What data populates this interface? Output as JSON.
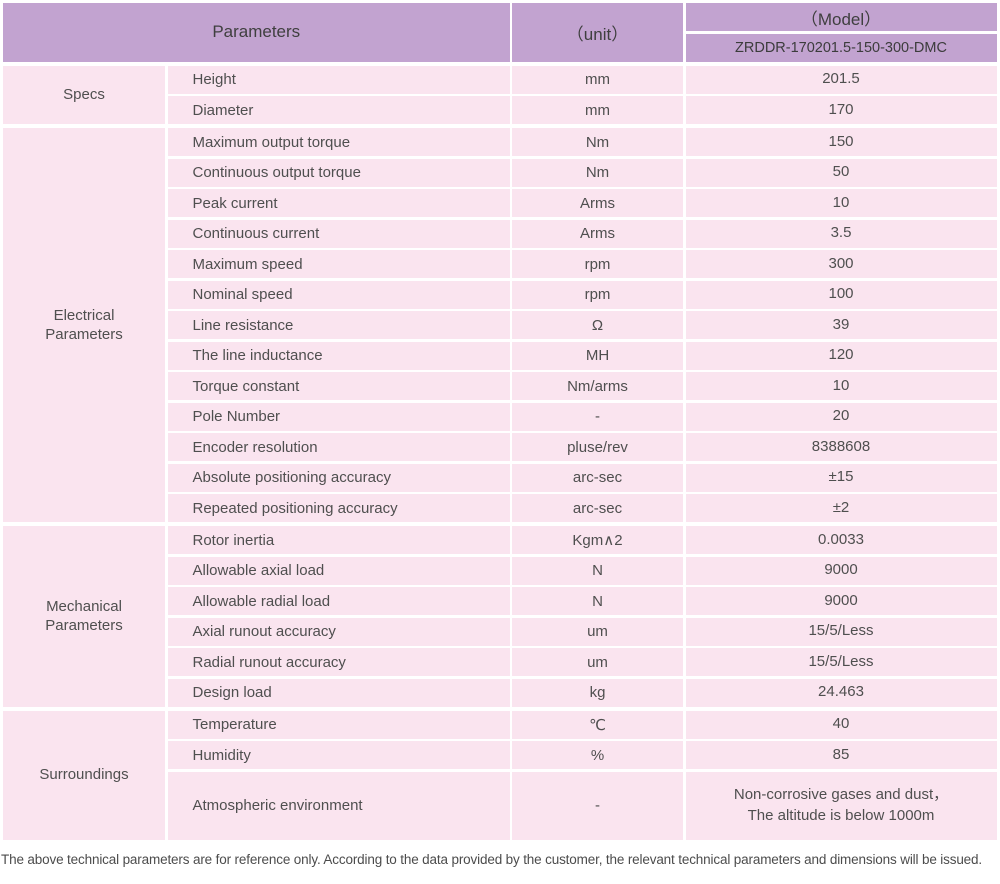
{
  "table": {
    "header": {
      "parameters_label": "Parameters",
      "unit_label": "（unit）",
      "model_label": "（Model）",
      "model_value": "ZRDDR-170201.5-150-300-DMC"
    },
    "sections": [
      {
        "group": "Specs",
        "rows": [
          {
            "name": "Height",
            "unit": "mm",
            "value": "201.5"
          },
          {
            "name": "Diameter",
            "unit": "mm",
            "value": "170"
          }
        ]
      },
      {
        "group": "Electrical\nParameters",
        "rows": [
          {
            "name": "Maximum output torque",
            "unit": "Nm",
            "value": "150"
          },
          {
            "name": "Continuous output torque",
            "unit": "Nm",
            "value": "50"
          },
          {
            "name": "Peak current",
            "unit": "Arms",
            "value": "10"
          },
          {
            "name": "Continuous current",
            "unit": "Arms",
            "value": "3.5"
          },
          {
            "name": "Maximum speed",
            "unit": "rpm",
            "value": "300"
          },
          {
            "name": "Nominal speed",
            "unit": "rpm",
            "value": "100"
          },
          {
            "name": "Line resistance",
            "unit": "Ω",
            "value": "39"
          },
          {
            "name": "The line inductance",
            "unit": "MH",
            "value": "120"
          },
          {
            "name": "Torque constant",
            "unit": "Nm/arms",
            "value": "10"
          },
          {
            "name": "Pole Number",
            "unit": "-",
            "value": "20"
          },
          {
            "name": "Encoder resolution",
            "unit": "pluse/rev",
            "value": "8388608"
          },
          {
            "name": "Absolute positioning accuracy",
            "unit": "arc-sec",
            "value": "±15"
          },
          {
            "name": "Repeated positioning accuracy",
            "unit": "arc-sec",
            "value": "±2"
          }
        ]
      },
      {
        "group": "Mechanical\nParameters",
        "rows": [
          {
            "name": "Rotor inertia",
            "unit": "Kgm∧2",
            "value": "0.0033"
          },
          {
            "name": "Allowable axial load",
            "unit": "N",
            "value": "9000"
          },
          {
            "name": "Allowable radial load",
            "unit": "N",
            "value": "9000"
          },
          {
            "name": "Axial runout accuracy",
            "unit": "um",
            "value": "15/5/Less"
          },
          {
            "name": "Radial runout accuracy",
            "unit": "um",
            "value": "15/5/Less"
          },
          {
            "name": "Design load",
            "unit": "kg",
            "value": "24.463"
          }
        ]
      },
      {
        "group": "Surroundings",
        "rows": [
          {
            "name": "Temperature",
            "unit": "℃",
            "value": "40"
          },
          {
            "name": "Humidity",
            "unit": "%",
            "value": "85"
          },
          {
            "name": "Atmospheric environment",
            "unit": "-",
            "value": "Non-corrosive gases and dust，\nThe altitude is below 1000m",
            "tall": true
          }
        ]
      }
    ]
  },
  "footer": {
    "note": "The above technical parameters are for reference only. According to the data provided by the customer, the relevant technical parameters and dimensions will be issued."
  }
}
